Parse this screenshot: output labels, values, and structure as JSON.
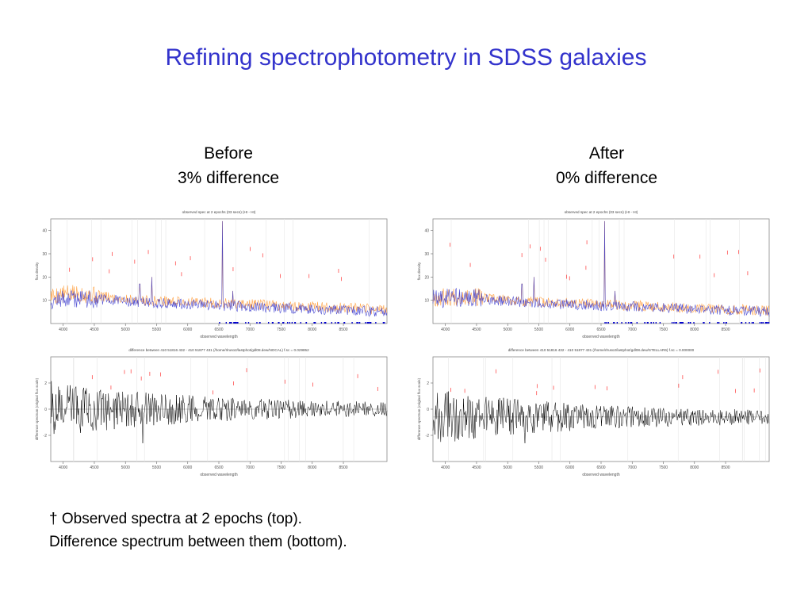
{
  "slide": {
    "title": "Refining spectrophotometry in SDSS galaxies",
    "before_heading": "Before",
    "before_subheading": "3% difference",
    "after_heading": "After",
    "after_subheading": "0% difference",
    "caption_line1": "† Observed spectra at 2 epochs (top).",
    "caption_line2": "Difference spectrum between them (bottom)."
  },
  "colors": {
    "title": "#3333cc",
    "epoch1": "#ff9933",
    "epoch2": "#3333cc",
    "difference": "#000000",
    "line_label": "#ff3333",
    "mask": "#0000cc"
  },
  "chart_data": [
    {
      "id": "before-top",
      "type": "line",
      "title": "observed spec at 2 epochs (03 secs) (HI - HI)",
      "xlabel": "observed wavelength",
      "ylabel": "flux density",
      "xlim": [
        3800,
        9200
      ],
      "ylim": [
        0,
        45
      ],
      "xticks": [
        4000,
        4500,
        5000,
        5500,
        6000,
        6500,
        7000,
        7500,
        8000,
        8500
      ],
      "yticks": [
        10,
        20,
        30,
        40
      ],
      "series": [
        {
          "color": "#ff9933",
          "values": [
            12,
            13,
            11,
            10,
            9.5,
            9,
            8.5,
            8,
            7.5,
            7,
            6.5,
            6
          ]
        },
        {
          "color": "#3333cc",
          "values": [
            10,
            11,
            10,
            9,
            8.5,
            8,
            7.5,
            7,
            6.5,
            6,
            5.5,
            5
          ]
        }
      ],
      "emission_lines": [
        {
          "x": 5230,
          "y": 17
        },
        {
          "x": 5420,
          "y": 20
        },
        {
          "x": 6560,
          "y": 44
        },
        {
          "x": 6720,
          "y": 14
        }
      ]
    },
    {
      "id": "before-bottom",
      "type": "line",
      "title": "difference between 410 51816 432 - 410 51877 431 (/home/rlruso2/lastphot/gdl08.dew/NOCAL) f.sc = 0.029852",
      "xlabel": "observed wavelength",
      "ylabel": "difference spectrum (original flux scale)",
      "xlim": [
        3800,
        9200
      ],
      "ylim": [
        -4,
        4
      ],
      "xticks": [
        4000,
        4500,
        5000,
        5500,
        6000,
        6500,
        7000,
        7500,
        8000,
        8500
      ],
      "yticks": [
        -2,
        0,
        2
      ],
      "series": [
        {
          "color": "#000000",
          "offset": 0.0
        }
      ]
    },
    {
      "id": "after-top",
      "type": "line",
      "title": "observed spec at 2 epochs (03 secs) (HI - HI)",
      "xlabel": "observed wavelength",
      "ylabel": "flux density",
      "xlim": [
        3800,
        9200
      ],
      "ylim": [
        0,
        45
      ],
      "xticks": [
        4000,
        4500,
        5000,
        5500,
        6000,
        6500,
        7000,
        7500,
        8000,
        8500
      ],
      "yticks": [
        10,
        20,
        30,
        40
      ],
      "series": [
        {
          "color": "#ff9933",
          "values": [
            11,
            12,
            10.5,
            9.5,
            9,
            8.5,
            8,
            7.5,
            7,
            6.5,
            6,
            5.5
          ]
        },
        {
          "color": "#3333cc",
          "values": [
            10.5,
            11.5,
            10,
            9,
            8.5,
            8,
            7.5,
            7,
            6.5,
            6,
            5.5,
            5
          ]
        }
      ],
      "emission_lines": [
        {
          "x": 5230,
          "y": 17
        },
        {
          "x": 5420,
          "y": 20
        },
        {
          "x": 6560,
          "y": 44
        },
        {
          "x": 6720,
          "y": 14
        }
      ]
    },
    {
      "id": "after-bottom",
      "type": "line",
      "title": "difference between 410 51816 432 - 410 51877 431 (/home/rlruso2/lastphot/gdl08.dew/STELLAR6) f.sc = 0.000000",
      "xlabel": "observed wavelength",
      "ylabel": "difference spectrum (original flux scale)",
      "xlim": [
        3800,
        9200
      ],
      "ylim": [
        -4,
        4
      ],
      "xticks": [
        4000,
        4500,
        5000,
        5500,
        6000,
        6500,
        7000,
        7500,
        8000,
        8500
      ],
      "yticks": [
        -2,
        0,
        2
      ],
      "series": [
        {
          "color": "#000000",
          "offset": -0.6
        }
      ]
    }
  ]
}
